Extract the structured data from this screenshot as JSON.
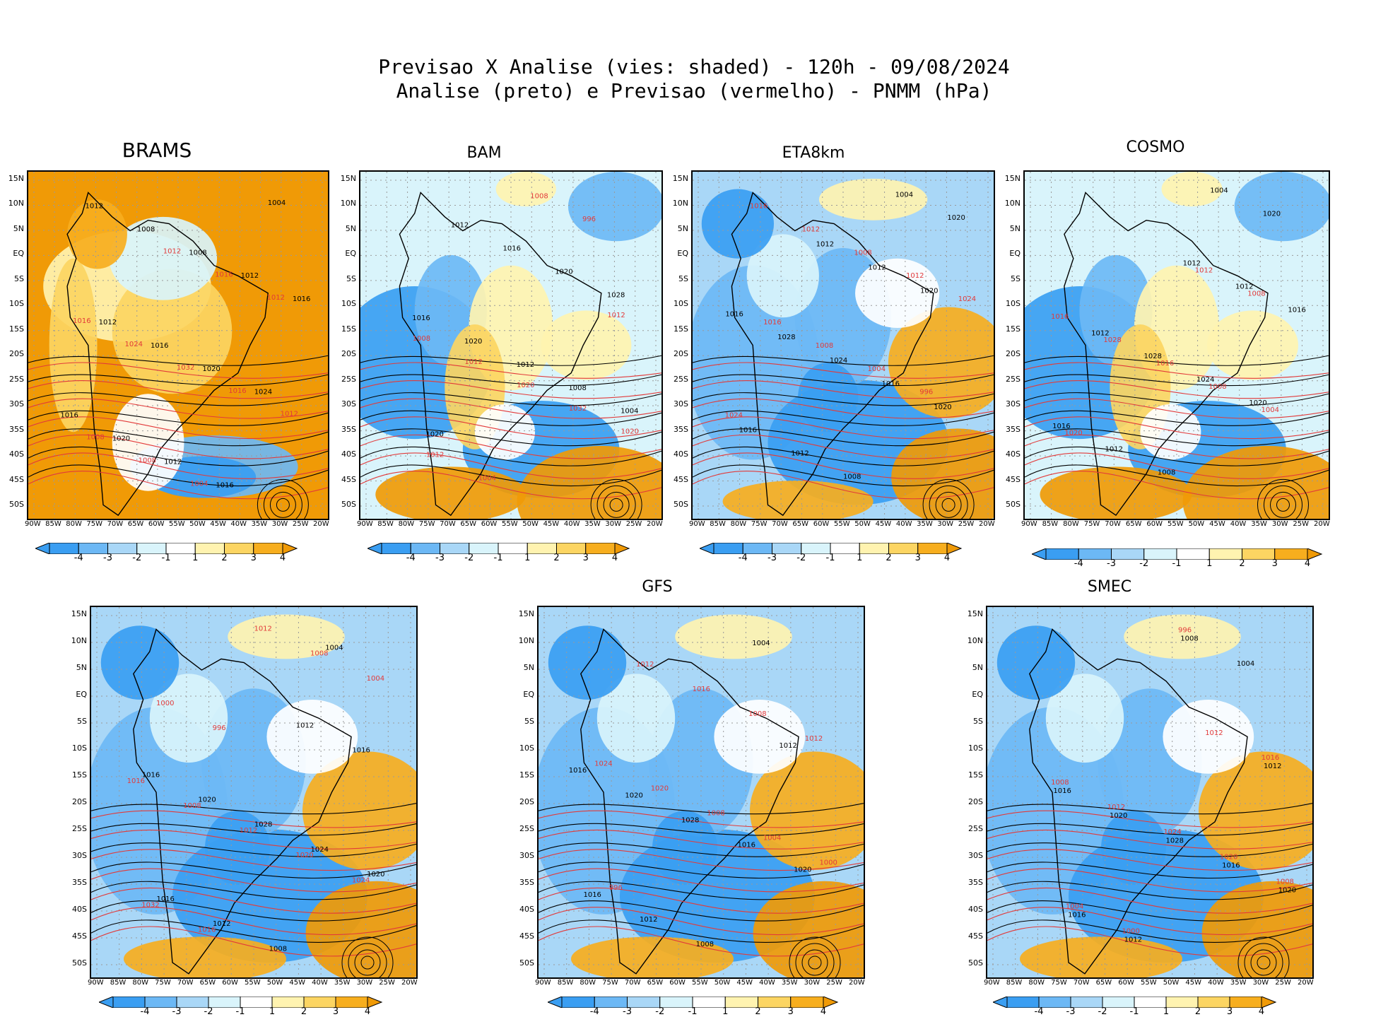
{
  "header": {
    "line1": "Previsao X Analise (vies: shaded) - 120h - 09/08/2024",
    "line2": "Analise (preto) e Previsao (vermelho) - PNMM (hPa)"
  },
  "axes": {
    "lat_labels": [
      "15N",
      "10N",
      "5N",
      "EQ",
      "5S",
      "10S",
      "15S",
      "20S",
      "25S",
      "30S",
      "35S",
      "40S",
      "45S",
      "50S"
    ],
    "lon_labels": [
      "90W",
      "85W",
      "80W",
      "75W",
      "70W",
      "65W",
      "60W",
      "55W",
      "50W",
      "45W",
      "40W",
      "35W",
      "30W",
      "25W",
      "20W"
    ]
  },
  "colorbar": {
    "labels": [
      "-4",
      "-3",
      "-2",
      "-1",
      "1",
      "2",
      "3",
      "4"
    ],
    "colors": [
      "#3a9ef2",
      "#6cb8f5",
      "#a9d7f7",
      "#d9f4fb",
      "#ffffff",
      "#fff3b0",
      "#fcd562",
      "#f7ae1e",
      "#f09a06"
    ]
  },
  "colors": {
    "analysis_contour": "#000000",
    "forecast_contour": "#e23a3a",
    "grid": "#9a9a9a"
  },
  "panels": [
    {
      "title": "BRAMS",
      "theme": "warm",
      "isobars_black": [
        "1012",
        "1008",
        "1008",
        "1012",
        "1016",
        "1012",
        "1016",
        "1020",
        "1024",
        "1016",
        "1020",
        "1012",
        "1016",
        "1004"
      ],
      "isobars_red": [
        "1012",
        "1016",
        "1012",
        "1016",
        "1024",
        "1032",
        "1016",
        "1012",
        "1008",
        "1008",
        "1004"
      ]
    },
    {
      "title": "BAM",
      "theme": "mixed",
      "isobars_black": [
        "1012",
        "1016",
        "1020",
        "1028",
        "1016",
        "1020",
        "1012",
        "1008",
        "1004",
        "1020"
      ],
      "isobars_red": [
        "1012",
        "1008",
        "1012",
        "1020",
        "1032",
        "1020",
        "1012",
        "1004",
        "1008",
        "996"
      ]
    },
    {
      "title": "ETA8km",
      "theme": "cool",
      "isobars_black": [
        "1012",
        "1012",
        "1020",
        "1016",
        "1028",
        "1024",
        "1016",
        "1020",
        "1016",
        "1012",
        "1008",
        "1004",
        "1020"
      ],
      "isobars_red": [
        "1016",
        "1012",
        "1008",
        "1012",
        "1024",
        "1016",
        "1008",
        "1004",
        "996",
        "1024"
      ]
    },
    {
      "title": "COSMO",
      "theme": "mixed",
      "isobars_black": [
        "1012",
        "1012",
        "1016",
        "1012",
        "1028",
        "1024",
        "1020",
        "1016",
        "1012",
        "1008",
        "1004",
        "1020"
      ],
      "isobars_red": [
        "1012",
        "1008",
        "1016",
        "1028",
        "1016",
        "1008",
        "1004",
        "1020"
      ]
    },
    {
      "title": "",
      "theme": "cool",
      "isobars_black": [
        "1012",
        "1016",
        "1016",
        "1020",
        "1028",
        "1024",
        "1020",
        "1016",
        "1012",
        "1008",
        "1004"
      ],
      "isobars_red": [
        "1016",
        "1008",
        "1012",
        "1020",
        "1024",
        "1032",
        "1016",
        "1012",
        "1008",
        "1004",
        "1000",
        "996"
      ]
    },
    {
      "title": "GFS",
      "theme": "cool",
      "isobars_black": [
        "1012",
        "1016",
        "1020",
        "1028",
        "1016",
        "1020",
        "1016",
        "1012",
        "1008",
        "1004"
      ],
      "isobars_red": [
        "1012",
        "1016",
        "1008",
        "1012",
        "1024",
        "1020",
        "1008",
        "1004",
        "1000",
        "996"
      ]
    },
    {
      "title": "SMEC",
      "theme": "cool",
      "isobars_black": [
        "1012",
        "1016",
        "1020",
        "1028",
        "1016",
        "1020",
        "1016",
        "1012",
        "1008",
        "1004"
      ],
      "isobars_red": [
        "1012",
        "1016",
        "1008",
        "1012",
        "1024",
        "1020",
        "1008",
        "1004",
        "1000",
        "996"
      ]
    }
  ]
}
